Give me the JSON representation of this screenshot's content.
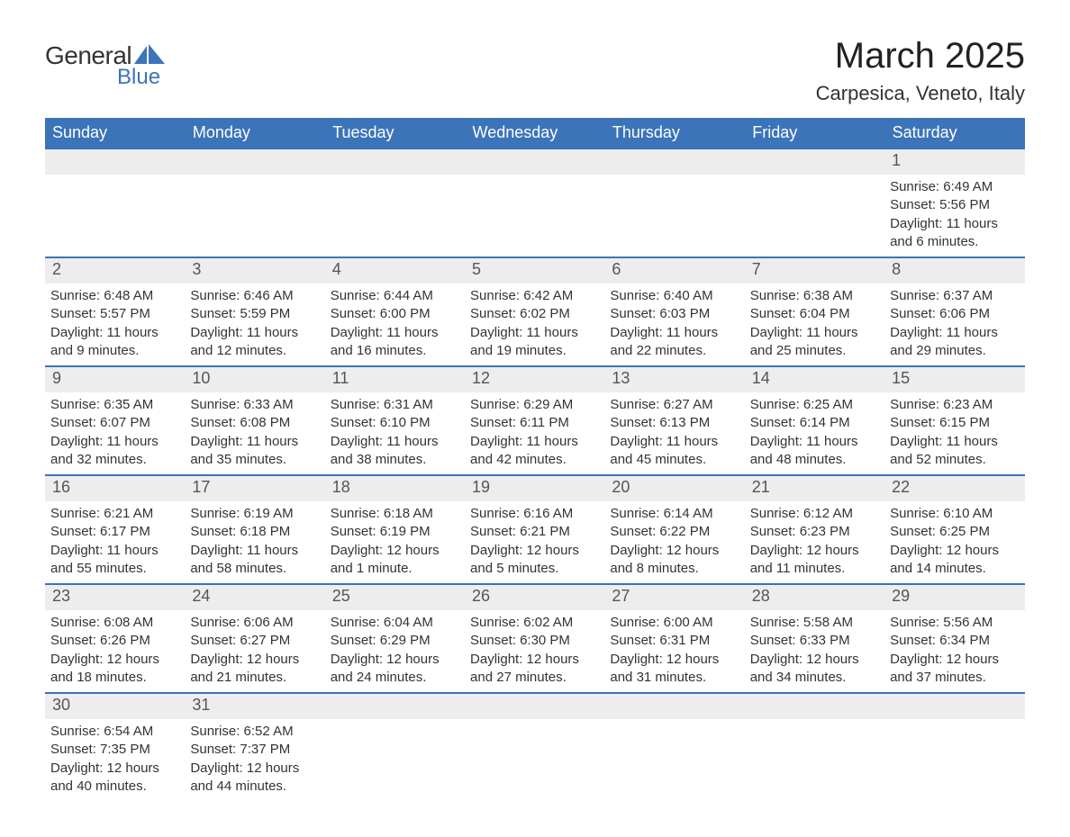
{
  "logo": {
    "general": "General",
    "blue": "Blue",
    "icon_color": "#3b74b9"
  },
  "title": "March 2025",
  "location": "Carpesica, Veneto, Italy",
  "weekdays": [
    "Sunday",
    "Monday",
    "Tuesday",
    "Wednesday",
    "Thursday",
    "Friday",
    "Saturday"
  ],
  "colors": {
    "header_bg": "#3b74b9",
    "header_text": "#ffffff",
    "daynum_bg": "#ededed",
    "border": "#3b74b9",
    "text": "#333333"
  },
  "font": {
    "family": "Arial",
    "title_size": 40,
    "location_size": 22,
    "header_size": 18,
    "daynum_size": 18,
    "body_size": 15
  },
  "weeks": [
    [
      null,
      null,
      null,
      null,
      null,
      null,
      {
        "n": "1",
        "sunrise": "Sunrise: 6:49 AM",
        "sunset": "Sunset: 5:56 PM",
        "daylight": "Daylight: 11 hours and 6 minutes."
      }
    ],
    [
      {
        "n": "2",
        "sunrise": "Sunrise: 6:48 AM",
        "sunset": "Sunset: 5:57 PM",
        "daylight": "Daylight: 11 hours and 9 minutes."
      },
      {
        "n": "3",
        "sunrise": "Sunrise: 6:46 AM",
        "sunset": "Sunset: 5:59 PM",
        "daylight": "Daylight: 11 hours and 12 minutes."
      },
      {
        "n": "4",
        "sunrise": "Sunrise: 6:44 AM",
        "sunset": "Sunset: 6:00 PM",
        "daylight": "Daylight: 11 hours and 16 minutes."
      },
      {
        "n": "5",
        "sunrise": "Sunrise: 6:42 AM",
        "sunset": "Sunset: 6:02 PM",
        "daylight": "Daylight: 11 hours and 19 minutes."
      },
      {
        "n": "6",
        "sunrise": "Sunrise: 6:40 AM",
        "sunset": "Sunset: 6:03 PM",
        "daylight": "Daylight: 11 hours and 22 minutes."
      },
      {
        "n": "7",
        "sunrise": "Sunrise: 6:38 AM",
        "sunset": "Sunset: 6:04 PM",
        "daylight": "Daylight: 11 hours and 25 minutes."
      },
      {
        "n": "8",
        "sunrise": "Sunrise: 6:37 AM",
        "sunset": "Sunset: 6:06 PM",
        "daylight": "Daylight: 11 hours and 29 minutes."
      }
    ],
    [
      {
        "n": "9",
        "sunrise": "Sunrise: 6:35 AM",
        "sunset": "Sunset: 6:07 PM",
        "daylight": "Daylight: 11 hours and 32 minutes."
      },
      {
        "n": "10",
        "sunrise": "Sunrise: 6:33 AM",
        "sunset": "Sunset: 6:08 PM",
        "daylight": "Daylight: 11 hours and 35 minutes."
      },
      {
        "n": "11",
        "sunrise": "Sunrise: 6:31 AM",
        "sunset": "Sunset: 6:10 PM",
        "daylight": "Daylight: 11 hours and 38 minutes."
      },
      {
        "n": "12",
        "sunrise": "Sunrise: 6:29 AM",
        "sunset": "Sunset: 6:11 PM",
        "daylight": "Daylight: 11 hours and 42 minutes."
      },
      {
        "n": "13",
        "sunrise": "Sunrise: 6:27 AM",
        "sunset": "Sunset: 6:13 PM",
        "daylight": "Daylight: 11 hours and 45 minutes."
      },
      {
        "n": "14",
        "sunrise": "Sunrise: 6:25 AM",
        "sunset": "Sunset: 6:14 PM",
        "daylight": "Daylight: 11 hours and 48 minutes."
      },
      {
        "n": "15",
        "sunrise": "Sunrise: 6:23 AM",
        "sunset": "Sunset: 6:15 PM",
        "daylight": "Daylight: 11 hours and 52 minutes."
      }
    ],
    [
      {
        "n": "16",
        "sunrise": "Sunrise: 6:21 AM",
        "sunset": "Sunset: 6:17 PM",
        "daylight": "Daylight: 11 hours and 55 minutes."
      },
      {
        "n": "17",
        "sunrise": "Sunrise: 6:19 AM",
        "sunset": "Sunset: 6:18 PM",
        "daylight": "Daylight: 11 hours and 58 minutes."
      },
      {
        "n": "18",
        "sunrise": "Sunrise: 6:18 AM",
        "sunset": "Sunset: 6:19 PM",
        "daylight": "Daylight: 12 hours and 1 minute."
      },
      {
        "n": "19",
        "sunrise": "Sunrise: 6:16 AM",
        "sunset": "Sunset: 6:21 PM",
        "daylight": "Daylight: 12 hours and 5 minutes."
      },
      {
        "n": "20",
        "sunrise": "Sunrise: 6:14 AM",
        "sunset": "Sunset: 6:22 PM",
        "daylight": "Daylight: 12 hours and 8 minutes."
      },
      {
        "n": "21",
        "sunrise": "Sunrise: 6:12 AM",
        "sunset": "Sunset: 6:23 PM",
        "daylight": "Daylight: 12 hours and 11 minutes."
      },
      {
        "n": "22",
        "sunrise": "Sunrise: 6:10 AM",
        "sunset": "Sunset: 6:25 PM",
        "daylight": "Daylight: 12 hours and 14 minutes."
      }
    ],
    [
      {
        "n": "23",
        "sunrise": "Sunrise: 6:08 AM",
        "sunset": "Sunset: 6:26 PM",
        "daylight": "Daylight: 12 hours and 18 minutes."
      },
      {
        "n": "24",
        "sunrise": "Sunrise: 6:06 AM",
        "sunset": "Sunset: 6:27 PM",
        "daylight": "Daylight: 12 hours and 21 minutes."
      },
      {
        "n": "25",
        "sunrise": "Sunrise: 6:04 AM",
        "sunset": "Sunset: 6:29 PM",
        "daylight": "Daylight: 12 hours and 24 minutes."
      },
      {
        "n": "26",
        "sunrise": "Sunrise: 6:02 AM",
        "sunset": "Sunset: 6:30 PM",
        "daylight": "Daylight: 12 hours and 27 minutes."
      },
      {
        "n": "27",
        "sunrise": "Sunrise: 6:00 AM",
        "sunset": "Sunset: 6:31 PM",
        "daylight": "Daylight: 12 hours and 31 minutes."
      },
      {
        "n": "28",
        "sunrise": "Sunrise: 5:58 AM",
        "sunset": "Sunset: 6:33 PM",
        "daylight": "Daylight: 12 hours and 34 minutes."
      },
      {
        "n": "29",
        "sunrise": "Sunrise: 5:56 AM",
        "sunset": "Sunset: 6:34 PM",
        "daylight": "Daylight: 12 hours and 37 minutes."
      }
    ],
    [
      {
        "n": "30",
        "sunrise": "Sunrise: 6:54 AM",
        "sunset": "Sunset: 7:35 PM",
        "daylight": "Daylight: 12 hours and 40 minutes."
      },
      {
        "n": "31",
        "sunrise": "Sunrise: 6:52 AM",
        "sunset": "Sunset: 7:37 PM",
        "daylight": "Daylight: 12 hours and 44 minutes."
      },
      null,
      null,
      null,
      null,
      null
    ]
  ]
}
